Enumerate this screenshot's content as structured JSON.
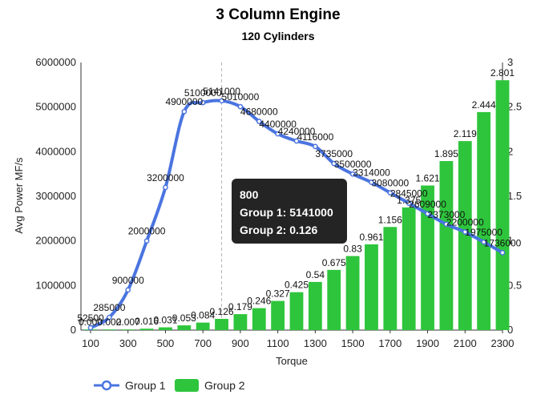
{
  "chart_data": {
    "type": "bar+line",
    "title": "3 Column Engine",
    "subtitle": "120 Cylinders",
    "xlabel": "Torque",
    "ylabel": "Avg Power MF/s",
    "categories": [
      100,
      200,
      300,
      400,
      500,
      600,
      700,
      800,
      900,
      1000,
      1100,
      1200,
      1300,
      1400,
      1500,
      1600,
      1700,
      1800,
      1900,
      2000,
      2100,
      2200,
      2300
    ],
    "xticks": [
      "100",
      "300",
      "500",
      "700",
      "900",
      "1100",
      "1300",
      "1500",
      "1700",
      "1900",
      "2100",
      "2300"
    ],
    "ylim_left": [
      0,
      6000000
    ],
    "yticks_left": [
      "0",
      "1000000",
      "2000000",
      "3000000",
      "4000000",
      "5000000",
      "6000000"
    ],
    "ylim_right": [
      0,
      3
    ],
    "yticks_right": [
      "0",
      "0.5",
      "1",
      "1.5",
      "2",
      "2.5",
      "3"
    ],
    "series": [
      {
        "name": "Group 1",
        "type": "line",
        "axis": "left",
        "color": "#4a74e0",
        "values": [
          52500,
          285000,
          900000,
          2000000,
          3200000,
          4900000,
          5100000,
          5141000,
          5010000,
          4680000,
          4400000,
          4240000,
          4116000,
          3735000,
          3500000,
          3314000,
          3080000,
          2845000,
          2609000,
          2373000,
          2200000,
          1975000,
          1736000
        ],
        "labels": [
          "52500",
          "285000",
          "900000",
          "2000000",
          "3200000",
          "4900000",
          "5100000",
          "5141000",
          "5010000",
          "4680000",
          "4400000",
          "4240000",
          "4116000",
          "3735000",
          "3500000",
          "3314000",
          "3080000",
          "2845000",
          "2609000",
          "2373000",
          "2200000",
          "1975000",
          "1736000"
        ]
      },
      {
        "name": "Group 2",
        "type": "bar",
        "axis": "right",
        "color": "#2ec53c",
        "values": [
          0.0,
          0.002,
          0.007,
          0.016,
          0.031,
          0.053,
          0.084,
          0.126,
          0.179,
          0.246,
          0.327,
          0.425,
          0.54,
          0.675,
          0.83,
          0.961,
          1.156,
          1.375,
          1.621,
          1.895,
          2.119,
          2.444,
          2.801
        ],
        "labels": [
          "0.000",
          "0.002",
          "0.007",
          "0.016",
          "0.031",
          "0.053",
          "0.084",
          "0.126",
          "0.179",
          "0.246",
          "0.327",
          "0.425",
          "0.54",
          "0.675",
          "0.83",
          "0.961",
          "1.156",
          "1.375",
          "1.621",
          "1.895",
          "2.119",
          "2.444",
          "2.801"
        ]
      }
    ],
    "tooltip": {
      "title": "800",
      "line1": "Group 1: 5141000",
      "line2": "Group 2: 0.126",
      "index": 7
    },
    "legend_position": "bottom-left",
    "grid": false
  }
}
